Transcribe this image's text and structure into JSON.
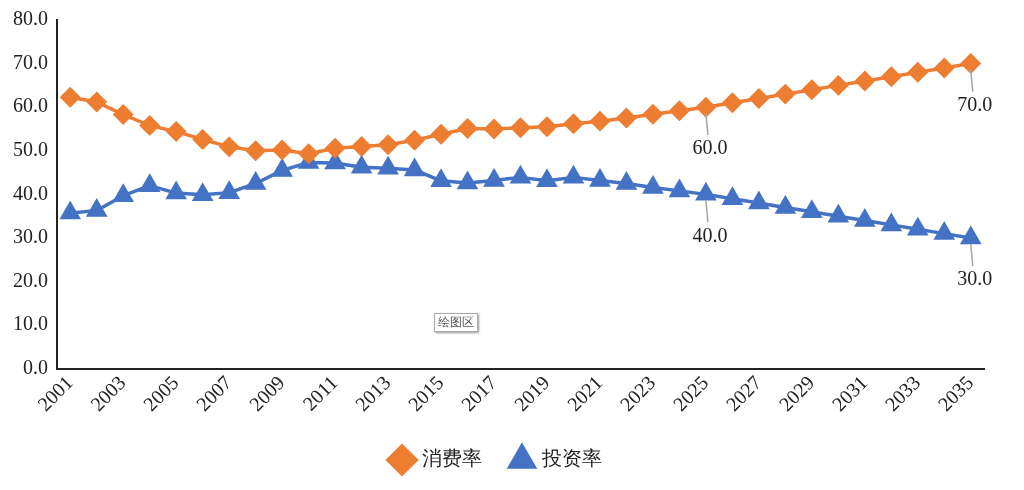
{
  "chart_data": {
    "type": "line",
    "categories": [
      "2001",
      null,
      "2003",
      null,
      "2005",
      null,
      "2007",
      null,
      "2009",
      null,
      "2011",
      null,
      "2013",
      null,
      "2015",
      null,
      "2017",
      null,
      "2019",
      null,
      "2021",
      null,
      "2023",
      null,
      "2025",
      null,
      "2027",
      null,
      "2029",
      null,
      "2031",
      null,
      "2033",
      null,
      "2035"
    ],
    "series": [
      {
        "name": "消费率",
        "color": "#ed7d31",
        "marker": "diamond",
        "values": [
          62.3,
          61.2,
          58.3,
          55.8,
          54.4,
          52.6,
          50.9,
          50.0,
          50.2,
          49.3,
          50.6,
          51.0,
          51.4,
          52.4,
          53.8,
          55.1,
          55.0,
          55.3,
          55.5,
          56.2,
          56.8,
          57.5,
          58.4,
          59.2,
          60.0,
          61.0,
          62.0,
          63.0,
          64.0,
          65.0,
          66.0,
          67.0,
          68.0,
          69.0,
          70.0
        ],
        "value_labels": [
          null,
          null,
          null,
          null,
          null,
          null,
          null,
          null,
          null,
          null,
          null,
          null,
          null,
          null,
          null,
          null,
          null,
          null,
          null,
          null,
          null,
          null,
          null,
          null,
          "60.0",
          null,
          null,
          null,
          null,
          null,
          null,
          null,
          null,
          null,
          "70.0"
        ]
      },
      {
        "name": "投资率",
        "color": "#4472c4",
        "marker": "triangle",
        "values": [
          35.7,
          36.3,
          39.7,
          42.0,
          40.3,
          39.9,
          40.4,
          42.5,
          45.5,
          47.3,
          47.2,
          46.2,
          46.0,
          45.6,
          43.1,
          42.6,
          43.2,
          43.9,
          43.1,
          43.9,
          43.2,
          42.5,
          41.6,
          40.8,
          40.0,
          39.0,
          38.0,
          37.0,
          36.0,
          35.0,
          34.0,
          33.0,
          32.0,
          31.0,
          30.0
        ],
        "value_labels": [
          null,
          null,
          null,
          null,
          null,
          null,
          null,
          null,
          null,
          null,
          null,
          null,
          null,
          null,
          null,
          null,
          null,
          null,
          null,
          null,
          null,
          null,
          null,
          null,
          "40.0",
          null,
          null,
          null,
          null,
          null,
          null,
          null,
          null,
          null,
          "30.0"
        ]
      }
    ],
    "ylim": [
      0,
      80
    ],
    "yticks": [
      {
        "value": 0,
        "label": "0.0"
      },
      {
        "value": 10,
        "label": "10.0"
      },
      {
        "value": 20,
        "label": "20.0"
      },
      {
        "value": 30,
        "label": "30.0"
      },
      {
        "value": 40,
        "label": "40.0"
      },
      {
        "value": 50,
        "label": "50.0"
      },
      {
        "value": 60,
        "label": "60.0"
      },
      {
        "value": 70,
        "label": "70.0"
      },
      {
        "value": 80,
        "label": "80.0"
      }
    ],
    "grid": false,
    "legend": "bottom",
    "annotations": [
      "绘图区"
    ]
  }
}
